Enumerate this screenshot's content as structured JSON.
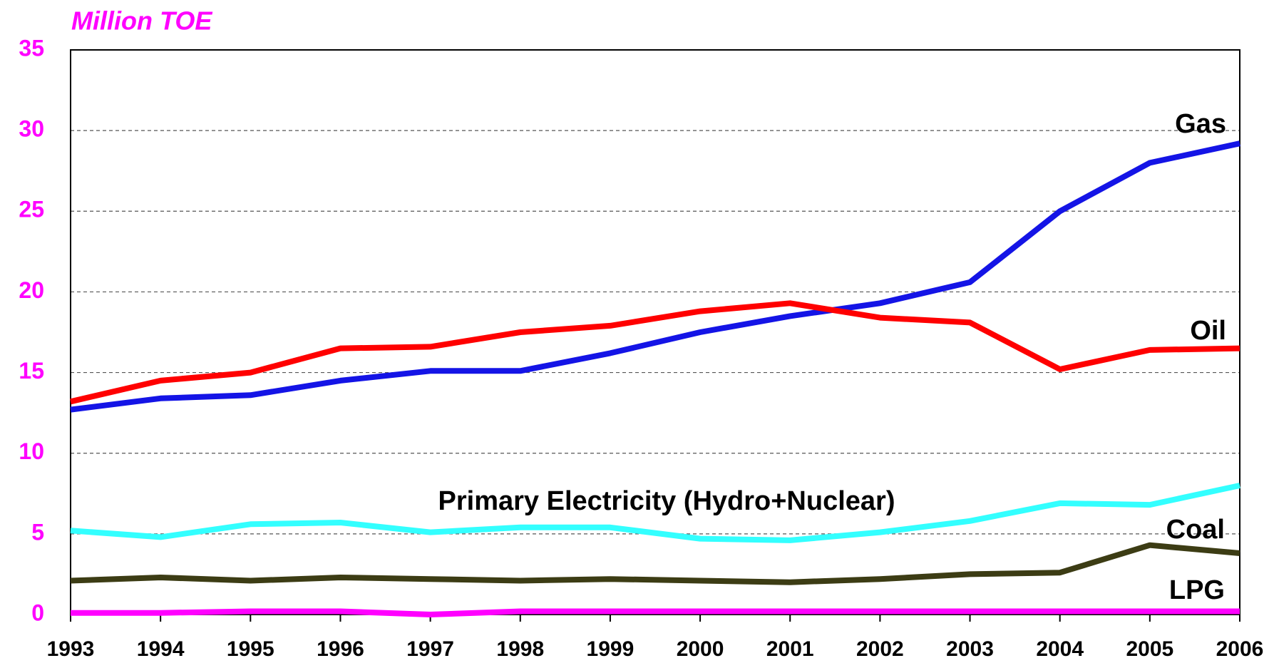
{
  "chart_data": {
    "type": "line",
    "title": "Million TOE",
    "categories": [
      "1993",
      "1994",
      "1995",
      "1996",
      "1997",
      "1998",
      "1999",
      "2000",
      "2001",
      "2002",
      "2003",
      "2004",
      "2005",
      "2006"
    ],
    "ylim": [
      0,
      35
    ],
    "yticks": [
      0,
      5,
      10,
      15,
      20,
      25,
      30,
      35
    ],
    "grid": true,
    "series": [
      {
        "name": "Gas",
        "color": "#1414e6",
        "values": [
          12.7,
          13.4,
          13.6,
          14.5,
          15.1,
          15.1,
          16.2,
          17.5,
          18.5,
          19.3,
          20.6,
          25.0,
          28.0,
          29.2
        ]
      },
      {
        "name": "Oil",
        "color": "#ff0000",
        "values": [
          13.2,
          14.5,
          15.0,
          16.5,
          16.6,
          17.5,
          17.9,
          18.8,
          19.3,
          18.4,
          18.1,
          15.2,
          16.4,
          16.5
        ]
      },
      {
        "name": "Primary Electricity (Hydro+Nuclear)",
        "color": "#33ffff",
        "values": [
          5.2,
          4.8,
          5.6,
          5.7,
          5.1,
          5.4,
          5.4,
          4.7,
          4.6,
          5.1,
          5.8,
          6.9,
          6.8,
          8.0
        ]
      },
      {
        "name": "Coal",
        "color": "#3c3c14",
        "values": [
          2.1,
          2.3,
          2.1,
          2.3,
          2.2,
          2.1,
          2.2,
          2.1,
          2.0,
          2.2,
          2.5,
          2.6,
          4.3,
          3.8
        ]
      },
      {
        "name": "LPG",
        "color": "#ff00ff",
        "values": [
          0.1,
          0.1,
          0.2,
          0.2,
          0.0,
          0.2,
          0.2,
          0.2,
          0.2,
          0.2,
          0.2,
          0.2,
          0.2,
          0.2
        ]
      }
    ]
  }
}
